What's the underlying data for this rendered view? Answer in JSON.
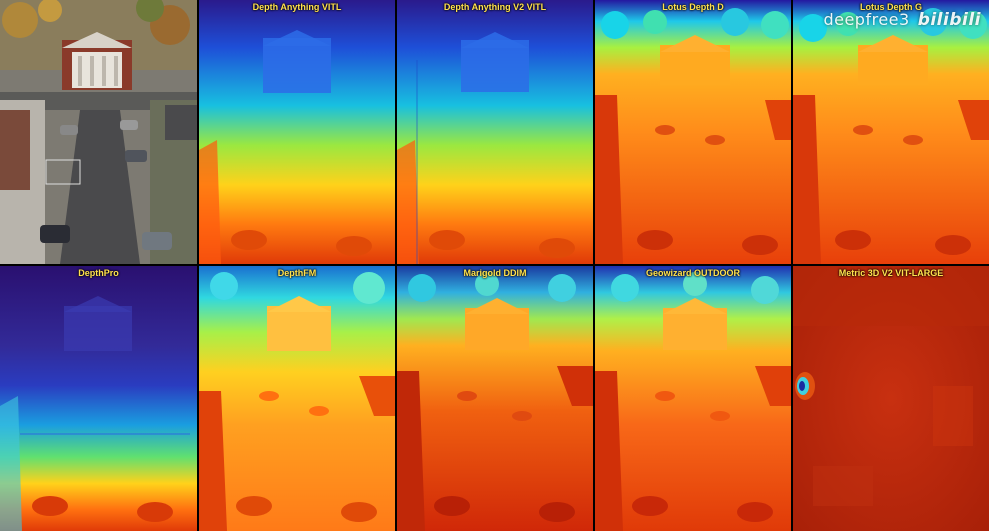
{
  "panels": [
    {
      "label": ""
    },
    {
      "label": "Depth Anything VITL"
    },
    {
      "label": "Depth Anything V2 VITL"
    },
    {
      "label": "Lotus Depth D"
    },
    {
      "label": "Lotus Depth G"
    },
    {
      "label": "DepthPro"
    },
    {
      "label": "DepthFM"
    },
    {
      "label": "Marigold DDIM"
    },
    {
      "label": "Geowizard OUTDOOR"
    },
    {
      "label": "Metric 3D V2 VIT-LARGE"
    }
  ],
  "watermark": {
    "text": "deepfree3",
    "logo": "bilibili"
  }
}
